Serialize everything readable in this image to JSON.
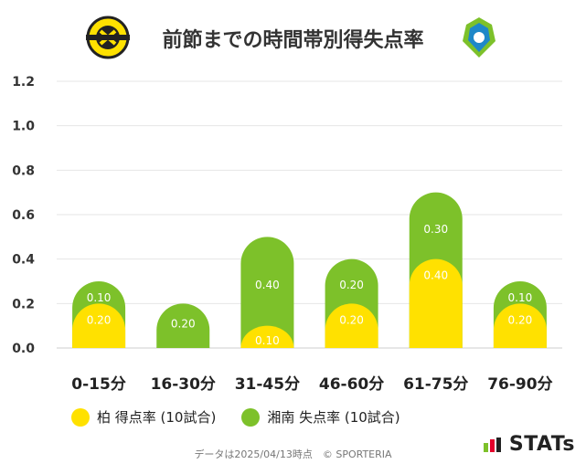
{
  "title": "前節までの時間帯別得失点率",
  "legend": {
    "home_label": "柏 得点率 (10試合)",
    "away_label": "湘南 失点率 (10試合)"
  },
  "footer_text": "データは2025/04/13時点　© SPORTERIA",
  "brand_text": "STATs",
  "colors": {
    "home": "#FFE100",
    "away": "#7DC12A",
    "grid": "#e6e6e6",
    "label": "#ffffff"
  },
  "chart_data": {
    "type": "bar",
    "stacked": true,
    "categories": [
      "0-15分",
      "16-30分",
      "31-45分",
      "46-60分",
      "61-75分",
      "76-90分"
    ],
    "series": [
      {
        "name": "柏 得点率 (10試合)",
        "values": [
          0.2,
          0.0,
          0.1,
          0.2,
          0.4,
          0.2
        ],
        "labels": [
          "0.20",
          "",
          "0.10",
          "0.20",
          "0.40",
          "0.20"
        ]
      },
      {
        "name": "湘南 失点率 (10試合)",
        "values": [
          0.1,
          0.2,
          0.4,
          0.2,
          0.3,
          0.1
        ],
        "labels": [
          "0.10",
          "0.20",
          "0.40",
          "0.20",
          "0.30",
          "0.10"
        ]
      }
    ],
    "yticks": [
      "0.0",
      "0.2",
      "0.4",
      "0.6",
      "0.8",
      "1.0",
      "1.2"
    ],
    "ylim": [
      0,
      1.2
    ],
    "grid": true,
    "legend_position": "bottom-left"
  }
}
